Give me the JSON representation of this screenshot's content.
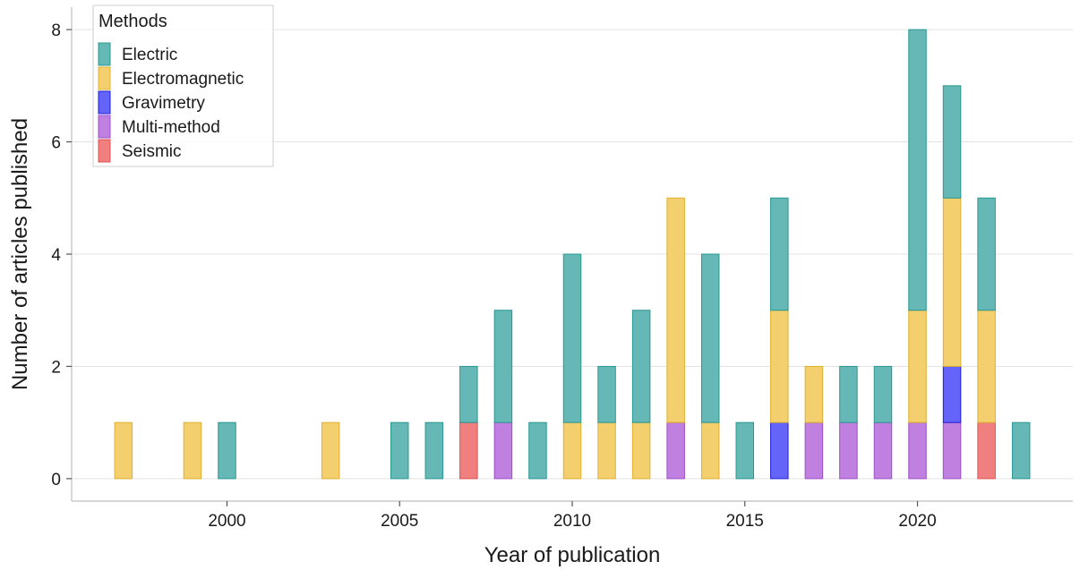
{
  "chart_data": {
    "type": "bar",
    "stacked": true,
    "xlabel": "Year of publication",
    "ylabel": "Number of articles published",
    "xlim": [
      1995.5,
      2024.5
    ],
    "ylim": [
      -0.4,
      8.4
    ],
    "x_ticks": [
      2000,
      2005,
      2010,
      2015,
      2020
    ],
    "y_ticks": [
      0,
      2,
      4,
      6,
      8
    ],
    "grid": "horizontal",
    "legend": {
      "title": "Methods",
      "placement": "top-left"
    },
    "x": [
      1997,
      1999,
      2000,
      2003,
      2005,
      2006,
      2007,
      2008,
      2009,
      2010,
      2011,
      2012,
      2013,
      2014,
      2015,
      2016,
      2017,
      2018,
      2019,
      2020,
      2021,
      2022,
      2023
    ],
    "series": [
      {
        "name": "Seismic",
        "color": "#f08080",
        "stroke": "#e05050",
        "values": [
          0,
          0,
          0,
          0,
          0,
          0,
          1,
          0,
          0,
          0,
          0,
          0,
          0,
          0,
          0,
          0,
          0,
          0,
          0,
          0,
          0,
          1,
          0
        ]
      },
      {
        "name": "Multi-method",
        "color": "#c080e0",
        "stroke": "#9a50c8",
        "values": [
          0,
          0,
          0,
          0,
          0,
          0,
          0,
          1,
          0,
          0,
          0,
          0,
          1,
          0,
          0,
          0,
          1,
          1,
          1,
          1,
          1,
          0,
          0
        ]
      },
      {
        "name": "Gravimetry",
        "color": "#6464f8",
        "stroke": "#2020d8",
        "values": [
          0,
          0,
          0,
          0,
          0,
          0,
          0,
          0,
          0,
          0,
          0,
          0,
          0,
          0,
          0,
          1,
          0,
          0,
          0,
          0,
          1,
          0,
          0
        ]
      },
      {
        "name": "Electromagnetic",
        "color": "#f3cf6e",
        "stroke": "#e0b030",
        "values": [
          1,
          1,
          0,
          1,
          0,
          0,
          0,
          0,
          0,
          1,
          1,
          1,
          4,
          1,
          0,
          2,
          1,
          0,
          0,
          2,
          3,
          2,
          0
        ]
      },
      {
        "name": "Electric",
        "color": "#66b8b6",
        "stroke": "#2a9893",
        "values": [
          0,
          0,
          1,
          0,
          1,
          1,
          1,
          2,
          1,
          3,
          1,
          2,
          0,
          3,
          1,
          2,
          0,
          1,
          1,
          5,
          2,
          2,
          1
        ]
      }
    ],
    "legend_order": [
      "Electric",
      "Electromagnetic",
      "Gravimetry",
      "Multi-method",
      "Seismic"
    ]
  }
}
